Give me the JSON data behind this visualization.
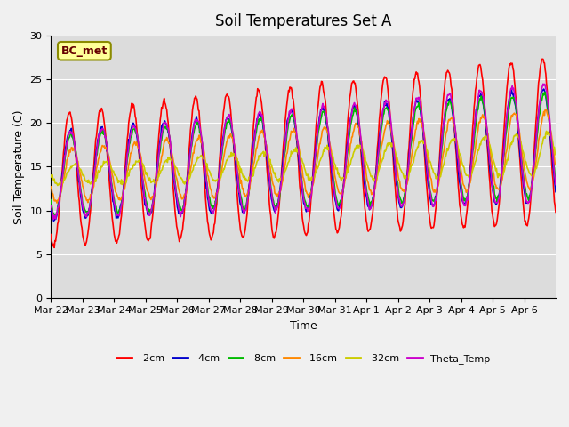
{
  "title": "Soil Temperatures Set A",
  "xlabel": "Time",
  "ylabel": "Soil Temperature (C)",
  "ylim": [
    0,
    30
  ],
  "yticks": [
    0,
    5,
    10,
    15,
    20,
    25,
    30
  ],
  "bg_color": "#dcdcdc",
  "fig_color": "#f0f0f0",
  "annotation_text": "BC_met",
  "annotation_bg": "#ffff99",
  "annotation_border": "#8B8B00",
  "series_colors": [
    "#ff0000",
    "#0000cc",
    "#00bb00",
    "#ff8800",
    "#cccc00",
    "#cc00cc"
  ],
  "series_labels": [
    "-2cm",
    "-4cm",
    "-8cm",
    "-16cm",
    "-32cm",
    "Theta_Temp"
  ],
  "tick_labels": [
    "Mar 22",
    "Mar 23",
    "Mar 24",
    "Mar 25",
    "Mar 26",
    "Mar 27",
    "Mar 28",
    "Mar 29",
    "Mar 30",
    "Mar 31",
    "Apr 1",
    "Apr 2",
    "Apr 3",
    "Apr 4",
    "Apr 5",
    "Apr 6"
  ],
  "n_days": 16,
  "pts_per_day": 48
}
